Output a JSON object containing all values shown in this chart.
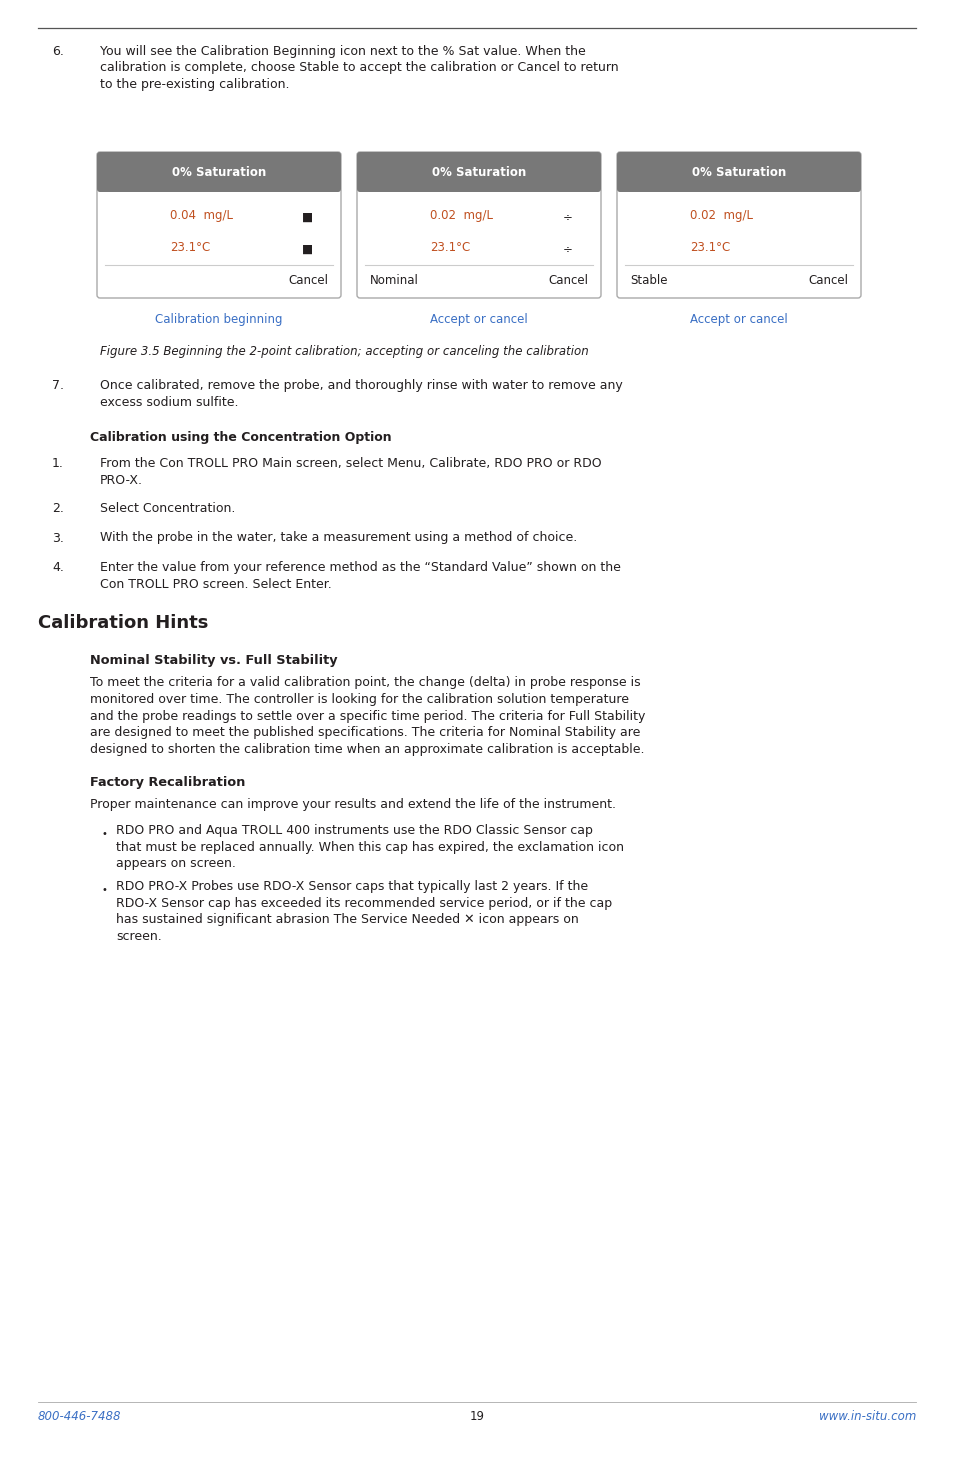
{
  "page_bg": "#ffffff",
  "footer_left": "800-446-7488",
  "footer_center": "19",
  "footer_right": "www.in-situ.com",
  "footer_color": "#3a6fc4",
  "footer_fontsize": 8.5,
  "body_text_color": "#231f20",
  "body_fontsize": 9.0,
  "item6_number": "6.",
  "item6_text": "You will see the Calibration Beginning icon next to the % Sat value. When the\ncalibration is complete, choose Stable to accept the calibration or Cancel to return\nto the pre-existing calibration.",
  "panels": [
    {
      "title": "0% Saturation",
      "row1": "0.04  mg/L",
      "row1_icon": "■",
      "row2": "23.1°C",
      "row2_icon": "■",
      "bottom_left": "",
      "bottom_right": "Cancel",
      "caption": "Calibration beginning"
    },
    {
      "title": "0% Saturation",
      "row1": "0.02  mg/L",
      "row1_icon": "÷",
      "row2": "23.1°C",
      "row2_icon": "÷",
      "bottom_left": "Nominal",
      "bottom_right": "Cancel",
      "caption": "Accept or cancel"
    },
    {
      "title": "0% Saturation",
      "row1": "0.02  mg/L",
      "row1_icon": "",
      "row2": "23.1°C",
      "row2_icon": "",
      "bottom_left": "Stable",
      "bottom_right": "Cancel",
      "caption": "Accept or cancel"
    }
  ],
  "figure_caption": "Figure 3.5 Beginning the 2-point calibration; accepting or canceling the calibration",
  "item7_number": "7.",
  "item7_text": "Once calibrated, remove the probe, and thoroughly rinse with water to remove any\nexcess sodium sulfite.",
  "section_conc_title": "Calibration using the Concentration Option",
  "conc_items": [
    "From the Con TROLL PRO Main screen, select Menu, Calibrate, RDO PRO or RDO\nPRO-X.",
    "Select Concentration.",
    "With the probe in the water, take a measurement using a method of choice.",
    "Enter the value from your reference method as the “Standard Value” shown on the\nCon TROLL PRO screen. Select Enter."
  ],
  "section_hints_title": "Calibration Hints",
  "subsection_nominal_title": "Nominal Stability vs. Full Stability",
  "nominal_text": "To meet the criteria for a valid calibration point, the change (delta) in probe response is\nmonitored over time. The controller is looking for the calibration solution temperature\nand the probe readings to settle over a specific time period. The criteria for Full Stability\nare designed to meet the published specifications. The criteria for Nominal Stability are\ndesigned to shorten the calibration time when an approximate calibration is acceptable.",
  "subsection_factory_title": "Factory Recalibration",
  "factory_intro": "Proper maintenance can improve your results and extend the life of the instrument.",
  "bullet1": "RDO PRO and Aqua TROLL 400 instruments use the RDO Classic Sensor cap\nthat must be replaced annually. When this cap has expired, the exclamation icon\nappears on screen.",
  "bullet2": "RDO PRO-X Probes use RDO-X Sensor caps that typically last 2 years. If the\nRDO-X Sensor cap has exceeded its recommended service period, or if the cap\nhas sustained significant abrasion The Service Needed ✕ icon appears on\nscreen.",
  "panel_header_color": "#787878",
  "panel_border_color": "#aaaaaa",
  "panel_bg": "#ffffff",
  "panel_header_text_color": "#ffffff",
  "panel_caption_color": "#3a6fc4",
  "panel_text_color": "#c05020"
}
